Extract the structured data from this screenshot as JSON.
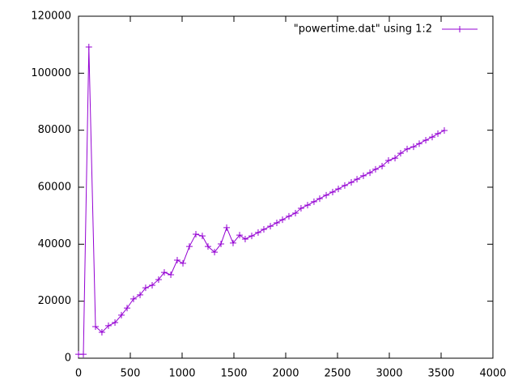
{
  "chart_data": {
    "type": "line",
    "x": [
      0,
      47,
      100,
      164,
      226,
      289,
      352,
      414,
      469,
      531,
      594,
      648,
      711,
      773,
      828,
      891,
      953,
      1008,
      1070,
      1133,
      1195,
      1250,
      1313,
      1375,
      1430,
      1492,
      1555,
      1609,
      1672,
      1734,
      1789,
      1852,
      1914,
      1969,
      2031,
      2094,
      2148,
      2211,
      2273,
      2328,
      2391,
      2453,
      2508,
      2570,
      2633,
      2688,
      2750,
      2813,
      2867,
      2930,
      2992,
      3055,
      3109,
      3172,
      3234,
      3289,
      3352,
      3414,
      3469,
      3531
    ],
    "series": [
      {
        "name": "\"powertime.dat\" using 1:2",
        "color": "#9400d3",
        "values": [
          1400,
          1400,
          109200,
          11100,
          9100,
          11400,
          12500,
          15100,
          17600,
          20800,
          22200,
          24700,
          25600,
          27600,
          30100,
          29300,
          34400,
          33300,
          39200,
          43500,
          42900,
          39200,
          37200,
          40100,
          45800,
          40400,
          43200,
          41800,
          42900,
          44100,
          45200,
          46300,
          47500,
          48600,
          49800,
          50900,
          52600,
          53700,
          54900,
          56000,
          57200,
          58300,
          59400,
          60600,
          61700,
          62800,
          64000,
          65100,
          66300,
          67400,
          69400,
          70200,
          71900,
          73400,
          74200,
          75300,
          76500,
          77600,
          78800,
          79900
        ]
      }
    ],
    "xlim": [
      0,
      4000
    ],
    "xticks": [
      0,
      500,
      1000,
      1500,
      2000,
      2500,
      3000,
      3500,
      4000
    ],
    "ylim": [
      0,
      120000
    ],
    "yticks": [
      0,
      20000,
      40000,
      60000,
      80000,
      100000,
      120000
    ],
    "legend": "top-right",
    "marker": "plus"
  }
}
